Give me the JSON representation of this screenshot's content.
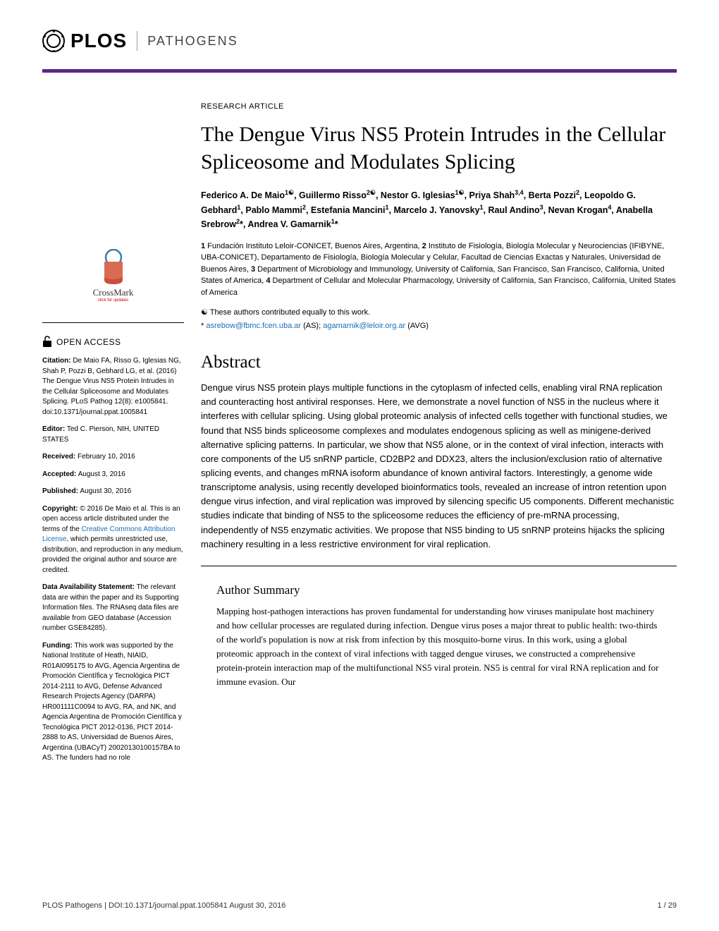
{
  "journal": {
    "logo_text": "PLOS",
    "subtitle": "PATHOGENS",
    "header_bar_color": "#552988"
  },
  "crossmark": {
    "label": "CrossMark",
    "sublabel": "click for updates"
  },
  "article": {
    "type": "RESEARCH ARTICLE",
    "title": "The Dengue Virus NS5 Protein Intrudes in the Cellular Spliceosome and Modulates Splicing",
    "authors_html": "Federico A. De Maio<sup>1☯</sup>, Guillermo Risso<sup>2☯</sup>, Nestor G. Iglesias<sup>1☯</sup>, Priya Shah<sup>3,4</sup>, Berta Pozzi<sup>2</sup>, Leopoldo G. Gebhard<sup>1</sup>, Pablo Mammi<sup>2</sup>, Estefania Mancini<sup>1</sup>, Marcelo J. Yanovsky<sup>1</sup>, Raul Andino<sup>3</sup>, Nevan Krogan<sup>4</sup>, Anabella Srebrow<sup>2</sup>*, Andrea V. Gamarnik<sup>1</sup>*",
    "affiliations_html": "<strong>1</strong> Fundación Instituto Leloir-CONICET, Buenos Aires, Argentina, <strong>2</strong> Instituto de Fisiología, Biología Molecular y Neurociencias (IFIBYNE, UBA-CONICET), Departamento de Fisiología, Biología Molecular y Celular, Facultad de Ciencias Exactas y Naturales, Universidad de Buenos Aires, <strong>3</strong> Department of Microbiology and Immunology, University of California, San Francisco, San Francisco, California, United States of America, <strong>4</strong> Department of Cellular and Molecular Pharmacology, University of California, San Francisco, California, United States of America",
    "contrib_note": "☯ These authors contributed equally to this work.",
    "correspondence_prefix": "* ",
    "email1": "asrebow@fbmc.fcen.uba.ar",
    "email1_suffix": " (AS); ",
    "email2": "agamarnik@leloir.org.ar",
    "email2_suffix": " (AVG)"
  },
  "abstract": {
    "heading": "Abstract",
    "text": "Dengue virus NS5 protein plays multiple functions in the cytoplasm of infected cells, enabling viral RNA replication and counteracting host antiviral responses. Here, we demonstrate a novel function of NS5 in the nucleus where it interferes with cellular splicing. Using global proteomic analysis of infected cells together with functional studies, we found that NS5 binds spliceosome complexes and modulates endogenous splicing as well as minigene-derived alternative splicing patterns. In particular, we show that NS5 alone, or in the context of viral infection, interacts with core components of the U5 snRNP particle, CD2BP2 and DDX23, alters the inclusion/exclusion ratio of alternative splicing events, and changes mRNA isoform abundance of known antiviral factors. Interestingly, a genome wide transcriptome analysis, using recently developed bioinformatics tools, revealed an increase of intron retention upon dengue virus infection, and viral replication was improved by silencing specific U5 components. Different mechanistic studies indicate that binding of NS5 to the spliceosome reduces the efficiency of pre-mRNA processing, independently of NS5 enzymatic activities. We propose that NS5 binding to U5 snRNP proteins hijacks the splicing machinery resulting in a less restrictive environment for viral replication."
  },
  "author_summary": {
    "heading": "Author Summary",
    "text": "Mapping host-pathogen interactions has proven fundamental for understanding how viruses manipulate host machinery and how cellular processes are regulated during infection. Dengue virus poses a major threat to public health: two-thirds of the world's population is now at risk from infection by this mosquito-borne virus. In this work, using a global proteomic approach in the context of viral infections with tagged dengue viruses, we constructed a comprehensive protein-protein interaction map of the multifunctional NS5 viral protein. NS5 is central for viral RNA replication and for immune evasion. Our"
  },
  "sidebar": {
    "open_access_label": "OPEN ACCESS",
    "citation_label": "Citation:",
    "citation_text": " De Maio FA, Risso G, Iglesias NG, Shah P, Pozzi B, Gebhard LG, et al. (2016) The Dengue Virus NS5 Protein Intrudes in the Cellular Spliceosome and Modulates Splicing. PLoS Pathog 12(8): e1005841. doi:10.1371/journal.ppat.1005841",
    "editor_label": "Editor:",
    "editor_text": " Ted C. Pierson, NIH, UNITED STATES",
    "received_label": "Received:",
    "received_text": " February 10, 2016",
    "accepted_label": "Accepted:",
    "accepted_text": " August 3, 2016",
    "published_label": "Published:",
    "published_text": " August 30, 2016",
    "copyright_label": "Copyright:",
    "copyright_text_pre": " © 2016 De Maio et al. This is an open access article distributed under the terms of the ",
    "copyright_link": "Creative Commons Attribution License",
    "copyright_text_post": ", which permits unrestricted use, distribution, and reproduction in any medium, provided the original author and source are credited.",
    "data_label": "Data Availability Statement:",
    "data_text": " The relevant data are within the paper and its Supporting Information files. The RNAseq data files are available from GEO database (Accession number GSE84285).",
    "funding_label": "Funding:",
    "funding_text": " This work was supported by the National Institute of Heath, NIAID, R01AI095175 to AVG, Agencia Argentina de Promoción Científica y Tecnológica PICT 2014-2111 to AVG, Defense Advanced Research Projects Agency (DARPA) HR001111C0094 to AVG, RA, and NK, and Agencia Argentina de Promoción Científica y Tecnológica PICT 2012-0136, PICT 2014-2888 to AS, Universidad de Buenos Aires, Argentina (UBACyT) 20020130100157BA to AS. The funders had no role"
  },
  "footer": {
    "left": "PLOS Pathogens | DOI:10.1371/journal.ppat.1005841   August 30, 2016",
    "right": "1 / 29"
  },
  "colors": {
    "link": "#1a6eb8",
    "accent": "#552988",
    "crossmark_red": "#c94f3a",
    "crossmark_blue": "#3a7ca5"
  }
}
